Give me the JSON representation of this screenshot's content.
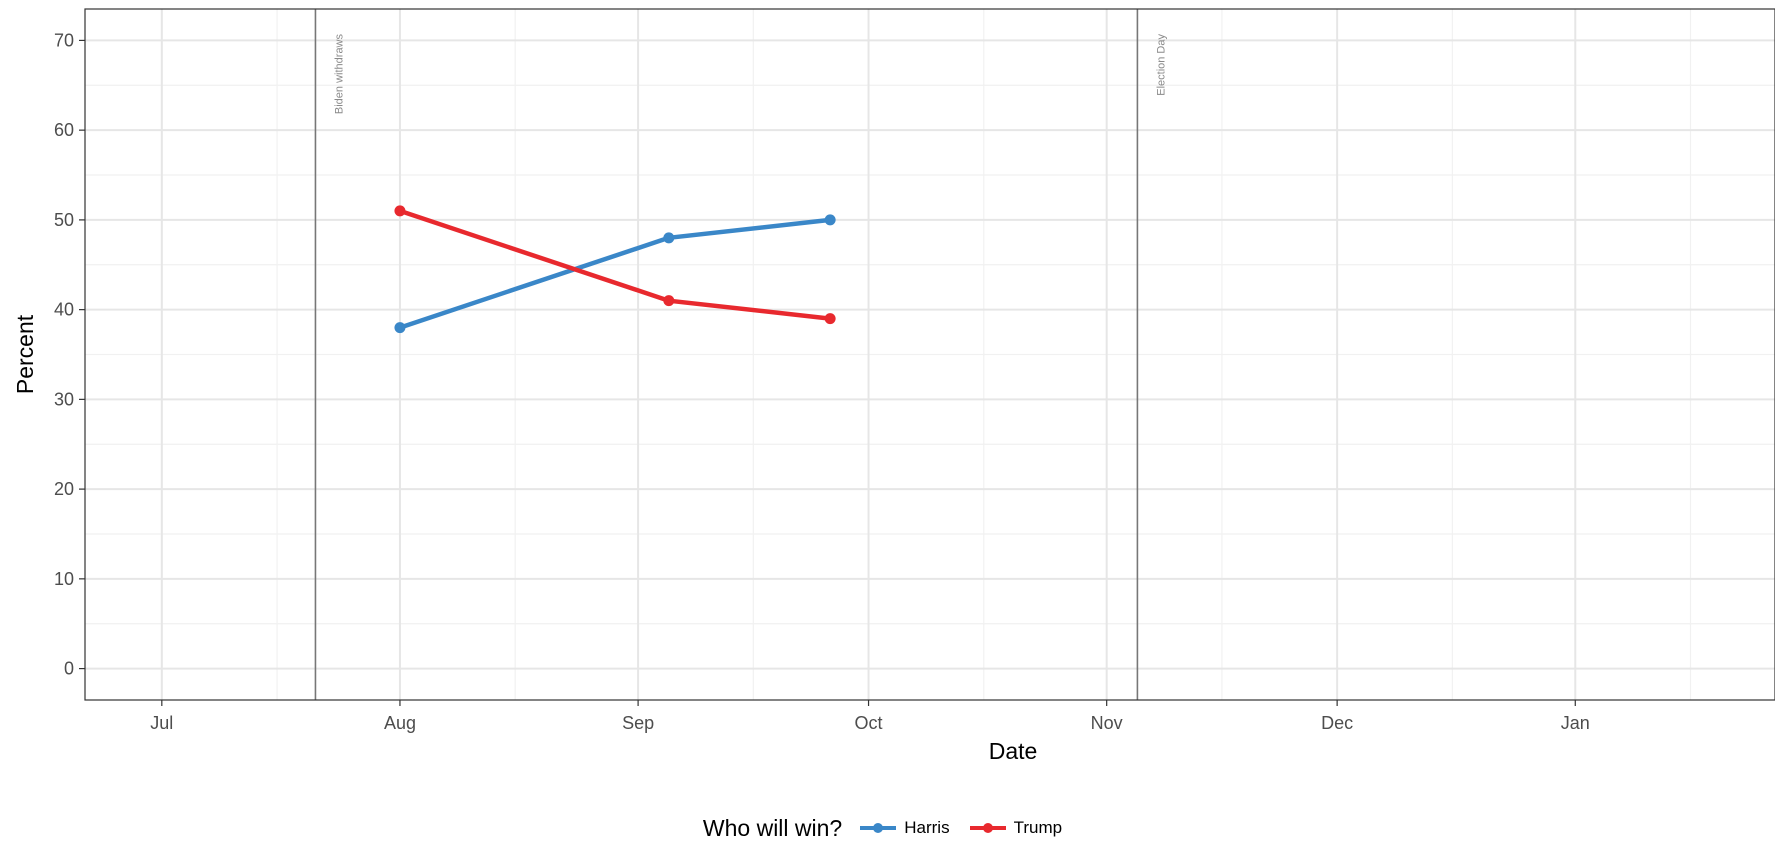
{
  "chart_data": {
    "type": "line",
    "x_type": "date",
    "xlabel": "Date",
    "ylabel": "Percent",
    "xlim": [
      "2024-06-21",
      "2025-01-27"
    ],
    "ylim": [
      -3.5,
      73.5
    ],
    "grid": true,
    "legend_position": "bottom",
    "x_ticks": [
      {
        "date": "2024-07-01",
        "label": "Jul"
      },
      {
        "date": "2024-08-01",
        "label": "Aug"
      },
      {
        "date": "2024-09-01",
        "label": "Sep"
      },
      {
        "date": "2024-10-01",
        "label": "Oct"
      },
      {
        "date": "2024-11-01",
        "label": "Nov"
      },
      {
        "date": "2024-12-01",
        "label": "Dec"
      },
      {
        "date": "2025-01-01",
        "label": "Jan"
      }
    ],
    "x_minor_ticks": [
      "2024-07-16",
      "2024-08-16",
      "2024-09-16",
      "2024-10-16",
      "2024-11-16",
      "2024-12-16",
      "2025-01-16"
    ],
    "y_ticks": [
      0,
      10,
      20,
      30,
      40,
      50,
      60,
      70
    ],
    "y_minor_ticks": [
      5,
      15,
      25,
      35,
      45,
      55,
      65
    ],
    "vlines": [
      {
        "date": "2024-07-21",
        "label": "Biden withdraws"
      },
      {
        "date": "2024-11-05",
        "label": "Election Day"
      }
    ],
    "legend_title": "Who will win?",
    "series": [
      {
        "name": "Harris",
        "color": "#3a87c8",
        "x": [
          "2024-08-01",
          "2024-09-05",
          "2024-09-26"
        ],
        "y": [
          38,
          48,
          50
        ]
      },
      {
        "name": "Trump",
        "color": "#e8292e",
        "x": [
          "2024-08-01",
          "2024-09-05",
          "2024-09-26"
        ],
        "y": [
          51,
          41,
          39
        ]
      }
    ]
  }
}
